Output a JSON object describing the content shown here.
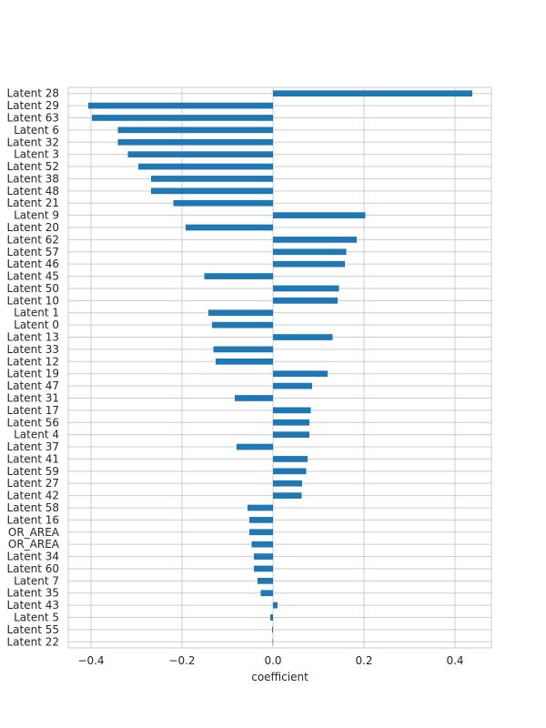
{
  "chart_data": {
    "type": "bar",
    "orientation": "horizontal",
    "title": "",
    "xlabel": "coefficient",
    "ylabel": "",
    "xlim": [
      -0.45,
      0.48
    ],
    "x_ticks": [
      -0.4,
      -0.2,
      0.0,
      0.2,
      0.4
    ],
    "x_tick_labels": [
      "−0.4",
      "−0.2",
      "0.0",
      "0.2",
      "0.4"
    ],
    "grid": true,
    "bar_color": "#1f77b4",
    "categories": [
      "Latent 28",
      "Latent 29",
      "Latent 63",
      "Latent 6",
      "Latent 32",
      "Latent 3",
      "Latent 52",
      "Latent 38",
      "Latent 48",
      "Latent 21",
      "Latent 9",
      "Latent 20",
      "Latent 62",
      "Latent 57",
      "Latent 46",
      "Latent 45",
      "Latent 50",
      "Latent 10",
      "Latent 1",
      "Latent 0",
      "Latent 13",
      "Latent 33",
      "Latent 12",
      "Latent 19",
      "Latent 47",
      "Latent 31",
      "Latent 17",
      "Latent 56",
      "Latent 4",
      "Latent 37",
      "Latent 41",
      "Latent 59",
      "Latent 27",
      "Latent 42",
      "Latent 58",
      "Latent 16",
      "OR_AREA",
      "OR_AREA",
      "Latent 34",
      "Latent 60",
      "Latent 7",
      "Latent 35",
      "Latent 43",
      "Latent 5",
      "Latent 55",
      "Latent 22"
    ],
    "values": [
      0.438,
      -0.406,
      -0.398,
      -0.341,
      -0.341,
      -0.319,
      -0.296,
      -0.268,
      -0.268,
      -0.219,
      0.203,
      -0.192,
      0.184,
      0.161,
      0.158,
      -0.151,
      0.145,
      0.142,
      -0.142,
      -0.134,
      0.131,
      -0.131,
      -0.126,
      0.12,
      0.086,
      -0.084,
      0.083,
      0.08,
      0.08,
      -0.08,
      0.076,
      0.073,
      0.064,
      0.063,
      -0.056,
      -0.052,
      -0.052,
      -0.047,
      -0.042,
      -0.042,
      -0.034,
      -0.027,
      0.01,
      -0.006,
      -0.002,
      -0.001
    ]
  }
}
